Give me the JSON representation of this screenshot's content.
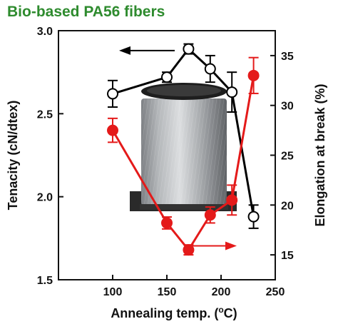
{
  "chart_data": {
    "type": "line",
    "title": "Bio-based PA56 fibers",
    "xlabel_text": "Annealing temp. (",
    "xlabel_unit_deg": "o",
    "xlabel_unit_rest": "C)",
    "ylabel": "Tenacity (cN/dtex)",
    "y2label": "Elongation at break (%)",
    "xlim": [
      50,
      250
    ],
    "ylim": [
      1.5,
      3.0
    ],
    "y2lim": [
      12.5,
      37.5
    ],
    "x_ticks": [
      "100",
      "150",
      "200",
      "250"
    ],
    "y_ticks": [
      "1.5",
      "2.0",
      "2.5",
      "3.0"
    ],
    "y2_ticks": [
      "15",
      "20",
      "25",
      "30",
      "35"
    ],
    "series": [
      {
        "axis": "left",
        "color": "#000000",
        "marker": "open-circle",
        "x": [
          100,
          150,
          170,
          190,
          210,
          230
        ],
        "y": [
          2.62,
          2.72,
          2.89,
          2.77,
          2.63,
          1.88
        ],
        "err": [
          0.08,
          0.03,
          0.03,
          0.08,
          0.12,
          0.07
        ]
      },
      {
        "axis": "right",
        "color": "#e41a1a",
        "marker": "filled-circle",
        "x": [
          100,
          150,
          170,
          190,
          210,
          230
        ],
        "y": [
          27.5,
          18.2,
          15.5,
          19.0,
          20.5,
          33.0
        ],
        "err": [
          1.2,
          0.6,
          0.5,
          0.8,
          1.5,
          1.8
        ]
      }
    ],
    "annotations": [
      {
        "type": "arrow",
        "direction": "left",
        "color": "#000000",
        "points_to": "left-axis"
      },
      {
        "type": "arrow",
        "direction": "right",
        "color": "#e41a1a",
        "points_to": "right-axis"
      }
    ],
    "inset_image": "fiber-spool-photo",
    "grid": false,
    "legend": "none"
  }
}
